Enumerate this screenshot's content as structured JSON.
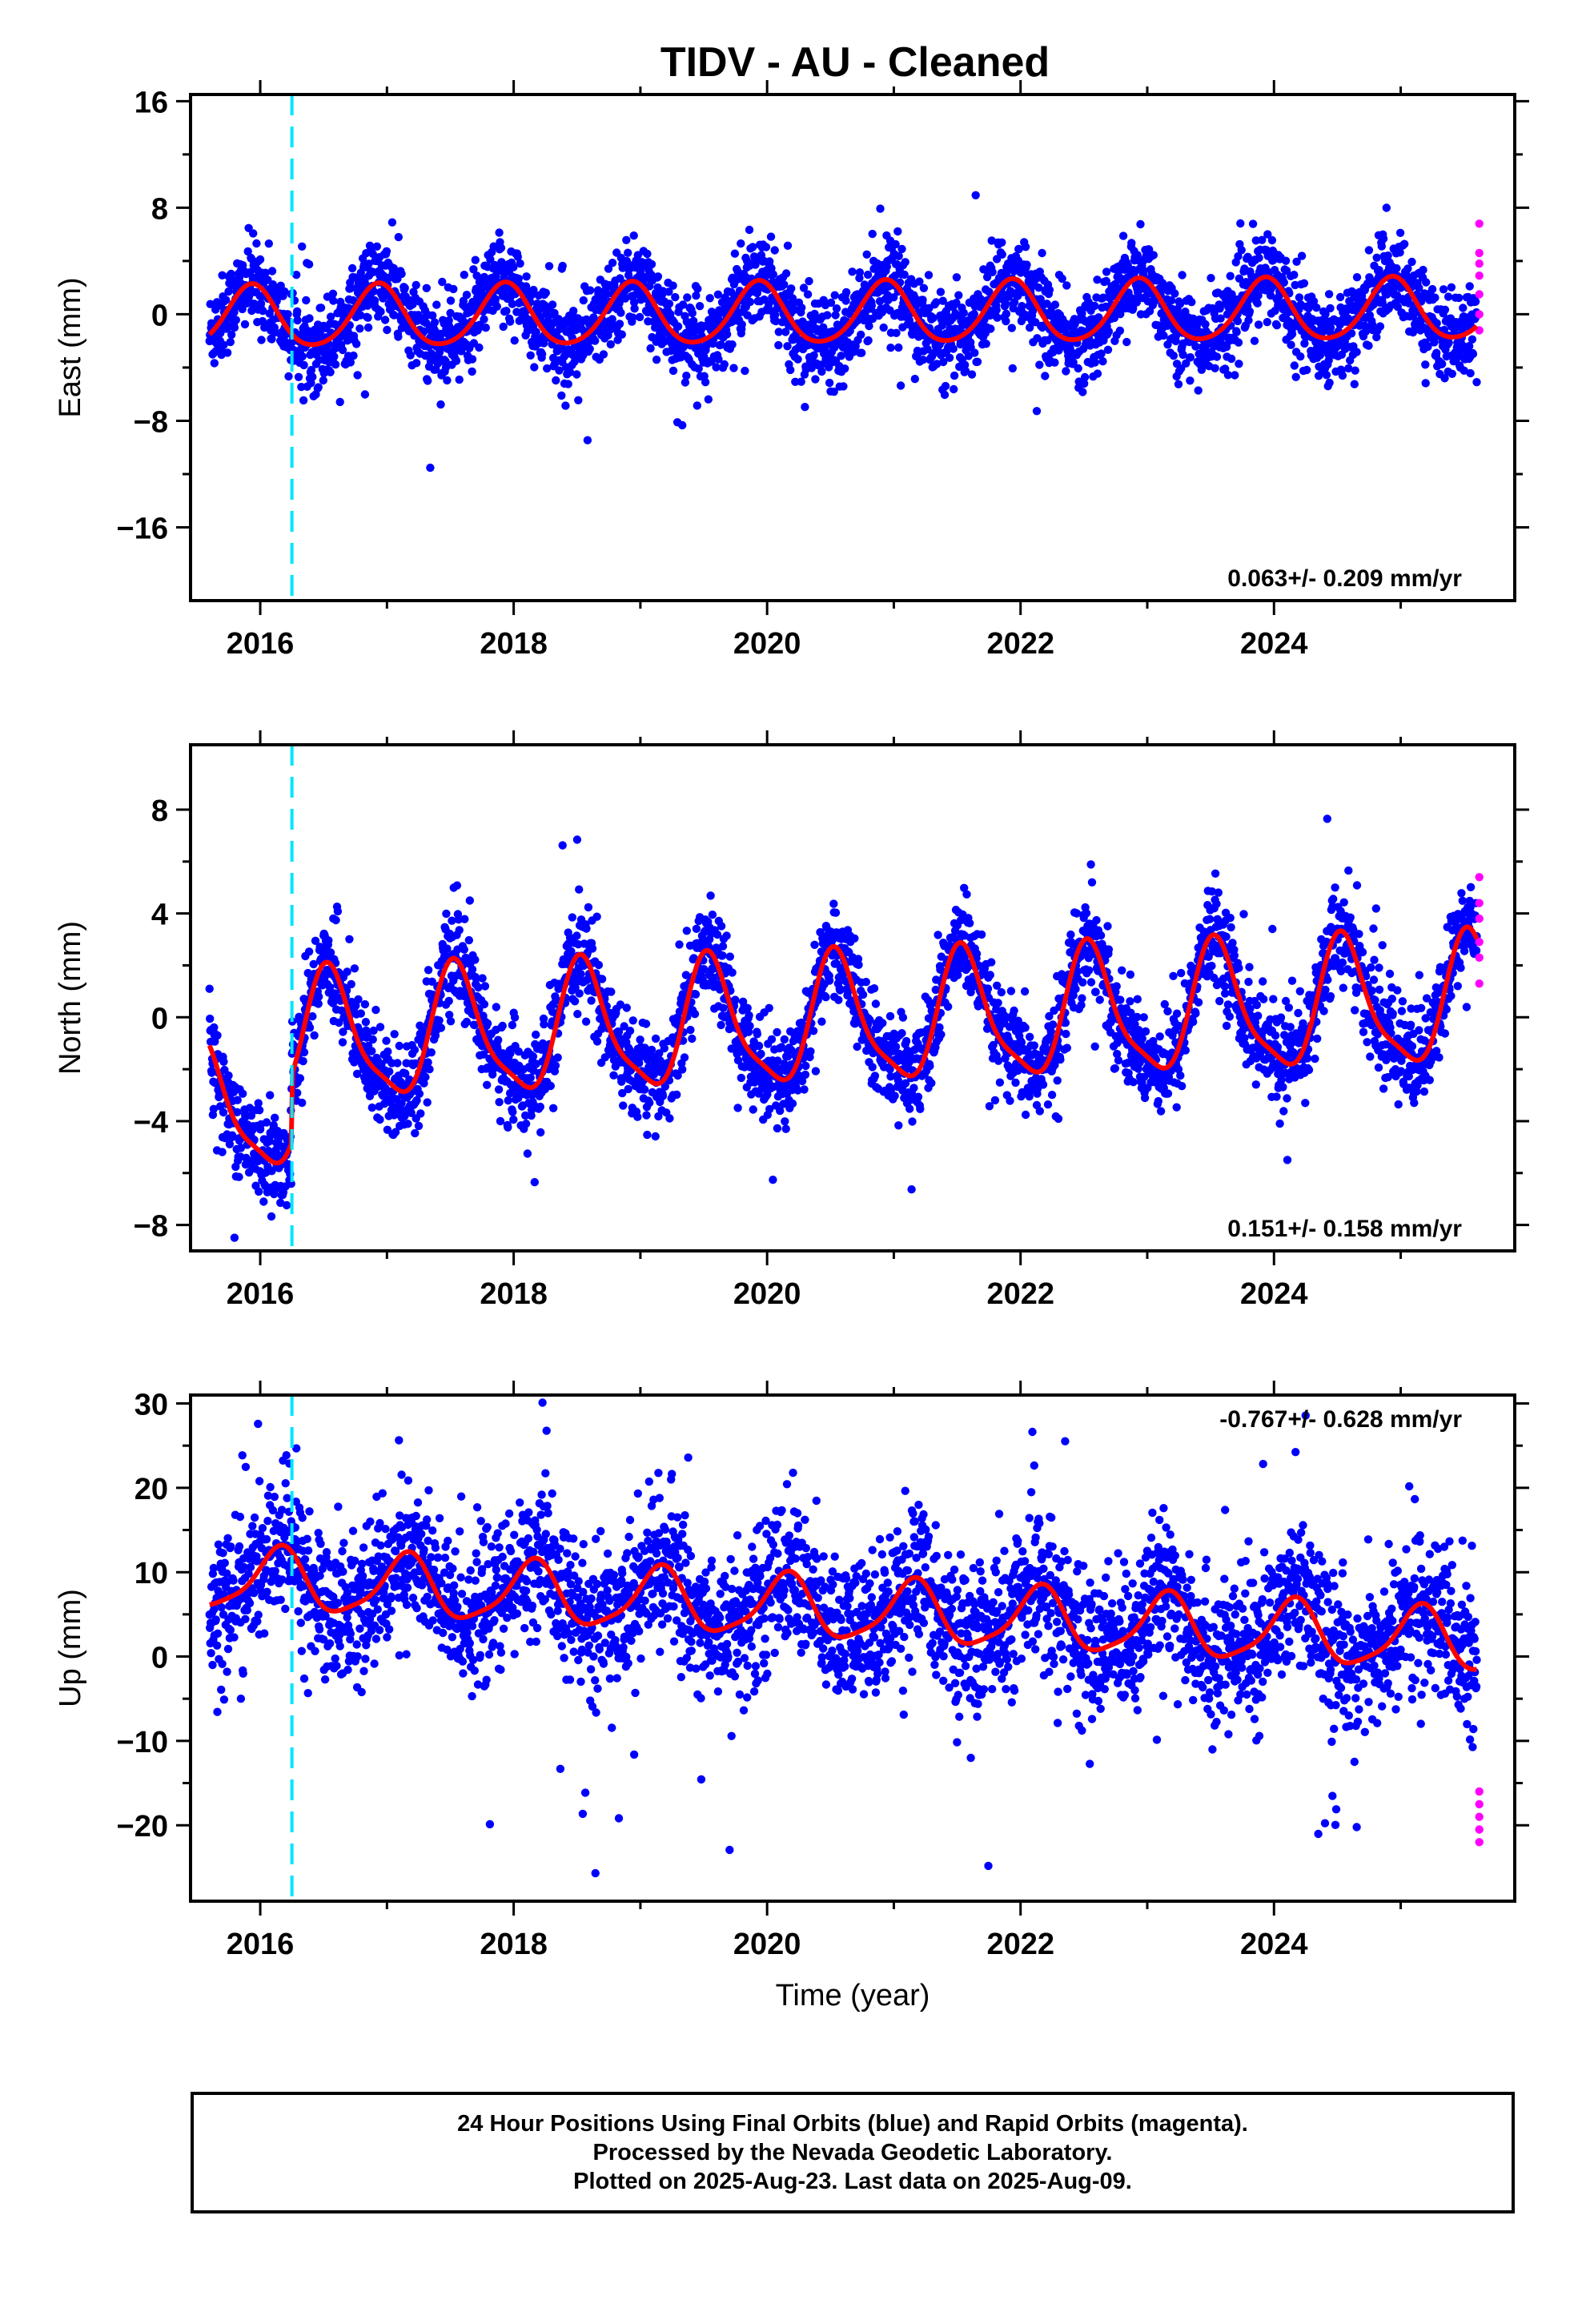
{
  "title": "TIDV  - AU - Cleaned",
  "colors": {
    "final_points": "#0000ff",
    "rapid_points": "#ff00ff",
    "fit_line": "#ff0000",
    "event_line": "#00e5ff",
    "frame": "#000000"
  },
  "footer": {
    "line1": "24 Hour Positions Using Final Orbits (blue) and Rapid Orbits (magenta).",
    "line2": "Processed by the Nevada Geodetic Laboratory.",
    "line3": "Plotted on 2025-Aug-23. Last data on 2025-Aug-09."
  },
  "chart_data": [
    {
      "type": "scatter",
      "ylabel": "East (mm)",
      "rate_label": "0.063+/- 0.209 mm/yr",
      "rate_position": "bottom-right",
      "xlim": [
        2015.45,
        2025.9
      ],
      "ylim": [
        -21.5,
        16.5
      ],
      "xticks": [
        2016,
        2018,
        2020,
        2022,
        2024
      ],
      "yticks": [
        -16,
        -8,
        0,
        8,
        16
      ],
      "event_line_x": 2016.25,
      "data_start": 2015.6,
      "data_end": 2025.6,
      "fit": {
        "offset": 0,
        "trend": 0.063,
        "annual_amp": 2.3,
        "annual_peak": 0.93,
        "semiannual_amp": 0.3,
        "semiannual_peak": 0.45,
        "noise_sd": 1.6
      },
      "rapid_values": [
        6.8,
        4.6,
        3.8,
        2.9,
        1.5,
        0.0,
        -1.2
      ]
    },
    {
      "type": "scatter",
      "ylabel": "North (mm)",
      "rate_label": "0.151+/- 0.158 mm/yr",
      "rate_position": "bottom-right",
      "xlim": [
        2015.45,
        2025.9
      ],
      "ylim": [
        -9,
        10.5
      ],
      "xticks": [
        2016,
        2018,
        2020,
        2022,
        2024
      ],
      "yticks": [
        -8,
        -4,
        0,
        4,
        8
      ],
      "event_line_x": 2016.25,
      "data_start": 2015.6,
      "data_end": 2025.6,
      "fit": {
        "offset": -0.2,
        "trend": 0.151,
        "annual_amp": 2.4,
        "annual_peak": 0.55,
        "semiannual_amp": 0.6,
        "semiannual_peak": 0.5,
        "noise_sd": 0.9,
        "pre_event_offset": -2.6
      },
      "rapid_values": [
        5.4,
        4.4,
        3.8,
        2.9,
        2.3,
        1.3
      ]
    },
    {
      "type": "scatter",
      "ylabel": "Up (mm)",
      "rate_label": "-0.767+/- 0.628 mm/yr",
      "rate_position": "top-right",
      "xlim": [
        2015.45,
        2025.9
      ],
      "ylim": [
        -29,
        31
      ],
      "xticks": [
        2016,
        2018,
        2020,
        2022,
        2024
      ],
      "yticks": [
        -20,
        -10,
        0,
        10,
        20,
        30
      ],
      "xlabel": "Time (year)",
      "event_line_x": 2016.25,
      "data_start": 2015.6,
      "data_end": 2025.6,
      "fit": {
        "offset": 5.5,
        "trend": -0.767,
        "annual_amp": 3.6,
        "annual_peak": 0.15,
        "semiannual_amp": 0.8,
        "semiannual_peak": 0.2,
        "noise_sd": 4.2
      },
      "rapid_values": [
        -16,
        -17.5,
        -19,
        -20.5,
        -22
      ]
    }
  ]
}
